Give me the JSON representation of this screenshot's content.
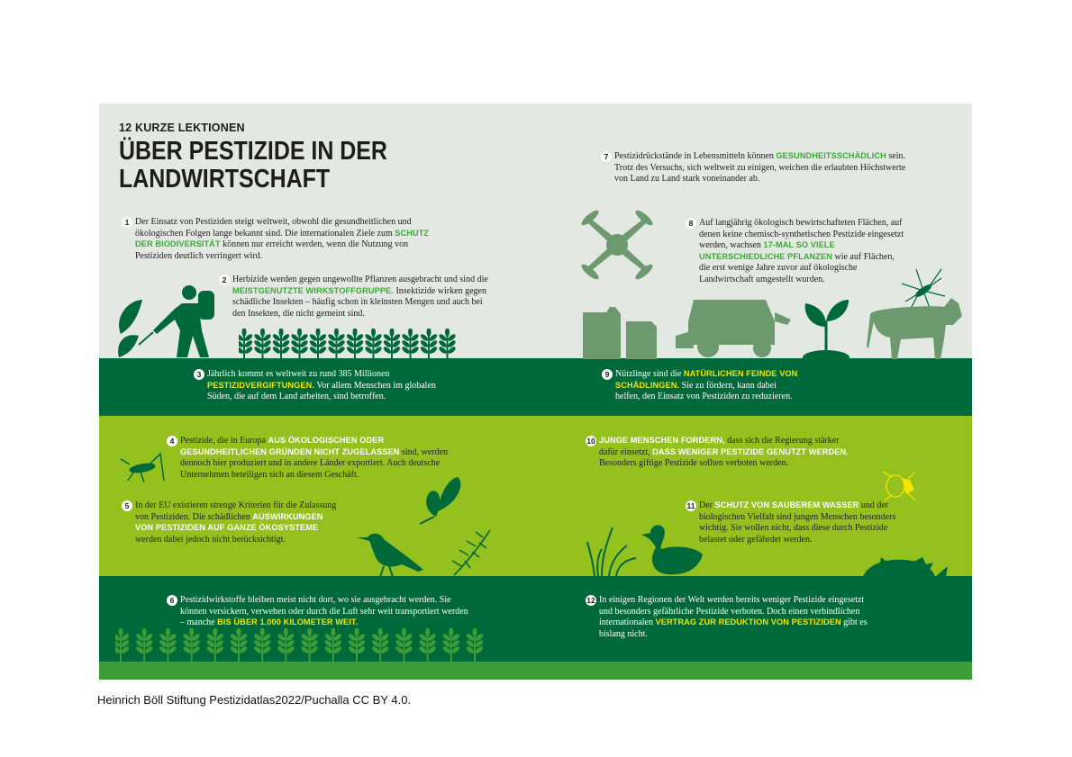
{
  "kicker": "12 KURZE LEKTIONEN",
  "headline": [
    "ÜBER PESTIZIDE IN DER",
    "LANDWIRTSCHAFT"
  ],
  "colors": {
    "light_band": "#e4e8e2",
    "dark_band": "#00693a",
    "lime_band": "#95c11f",
    "highlight_green": "#3aa935",
    "highlight_yellow": "#f4e400"
  },
  "items": [
    {
      "n": "1",
      "seg": [
        [
          "Der Einsatz von Pestiziden steigt weltweit, obwohl die gesundheitlichen und ökologischen Folgen lange bekannt sind. Die internationalen Ziele zum ",
          0
        ],
        [
          "SCHUTZ DER BIODIVERSITÄT",
          1
        ],
        [
          " können nur erreicht werden, wenn die Nutzung von Pestiziden deutlich verringert wird.",
          0
        ]
      ]
    },
    {
      "n": "2",
      "seg": [
        [
          "Herbizide werden gegen ungewollte Pflanzen ausgebracht und sind die ",
          0
        ],
        [
          "MEISTGENUTZTE WIRKSTOFFGRUPPE.",
          1
        ],
        [
          " Insektizide wirken gegen schädliche Insekten – häufig schon in kleinsten Mengen und auch bei den Insekten, die nicht gemeint sind.",
          0
        ]
      ]
    },
    {
      "n": "3",
      "seg": [
        [
          "Jährlich kommt es weltweit zu rund 385 Millionen ",
          0
        ],
        [
          "PESTIZIDVERGIFTUNGEN.",
          1
        ],
        [
          " Vor allem Menschen im globalen Süden, die auf dem Land arbeiten, sind betroffen.",
          0
        ]
      ]
    },
    {
      "n": "4",
      "seg": [
        [
          "Pestizide, die in Europa ",
          0
        ],
        [
          "AUS ÖKOLOGISCHEN ODER GESUNDHEITLICHEN GRÜNDEN NICHT ZUGELASSEN",
          1
        ],
        [
          " sind, werden dennoch hier produziert und in andere Länder exportiert. Auch deutsche Unternehmen beteiligen sich an diesem Geschäft.",
          0
        ]
      ]
    },
    {
      "n": "5",
      "seg": [
        [
          "In der EU existieren strenge Kriterien für die Zulassung von Pestiziden. Die schädlichen ",
          0
        ],
        [
          "AUSWIRKUNGEN VON PESTIZIDEN AUF GANZE ÖKOSYSTEME",
          1
        ],
        [
          " werden dabei jedoch nicht berücksichtigt.",
          0
        ]
      ]
    },
    {
      "n": "6",
      "seg": [
        [
          "Pestizidwirkstoffe bleiben meist nicht dort, wo sie ausgebracht werden. Sie können versickern, verwehen oder durch die Luft sehr weit transportiert werden – manche ",
          0
        ],
        [
          "BIS ÜBER 1.000 KILOMETER WEIT.",
          1
        ]
      ]
    },
    {
      "n": "7",
      "seg": [
        [
          "Pestizidrückstände in Lebensmitteln können ",
          0
        ],
        [
          "GESUNDHEITSSCHÄDLICH",
          1
        ],
        [
          " sein. Trotz des Versuchs, sich weltweit zu einigen, weichen die erlaubten Höchstwerte von Land zu Land stark voneinander ab.",
          0
        ]
      ]
    },
    {
      "n": "8",
      "seg": [
        [
          "Auf langjährig ökologisch bewirtschafteten Flächen, auf denen keine chemisch-synthetischen Pestizide eingesetzt werden, wachsen ",
          0
        ],
        [
          "17-MAL SO VIELE UNTERSCHIEDLICHE PFLANZEN",
          1
        ],
        [
          " wie auf Flächen, die erst wenige Jahre zuvor auf ökologische Landwirtschaft umgestellt wurden.",
          0
        ]
      ]
    },
    {
      "n": "9",
      "seg": [
        [
          "Nützlinge sind die ",
          0
        ],
        [
          "NATÜRLICHEN FEINDE VON SCHÄDLINGEN.",
          1
        ],
        [
          " Sie zu fördern, kann dabei helfen, den Einsatz von Pestiziden zu reduzieren.",
          0
        ]
      ]
    },
    {
      "n": "10",
      "seg": [
        [
          "JUNGE MENSCHEN FORDERN,",
          1
        ],
        [
          " dass sich die Regierung stärker dafür einsetzt, ",
          0
        ],
        [
          "DASS WENIGER PESTIZIDE GENUTZT WERDEN.",
          1
        ],
        [
          " Besonders giftige Pestizide sollten verboten werden.",
          0
        ]
      ]
    },
    {
      "n": "11",
      "seg": [
        [
          "Der ",
          0
        ],
        [
          "SCHUTZ VON SAUBEREM WASSER",
          1
        ],
        [
          " und der biologischen Vielfalt sind jungen Menschen besonders wichtig. Sie wollen nicht, dass diese durch Pestizide belastet oder gefährdet werden.",
          0
        ]
      ]
    },
    {
      "n": "12",
      "seg": [
        [
          "In einigen Regionen der Welt werden bereits weniger Pestizide eingesetzt und besonders gefährliche Pestizide verboten. Doch einen verbindlichen internationalen ",
          0
        ],
        [
          "VERTRAG ZUR REDUKTION VON PESTIZIDEN",
          1
        ],
        [
          " gibt es bislang nicht.",
          0
        ]
      ]
    }
  ],
  "caption": "Heinrich Böll Stiftung Pestizidatlas2022/Puchalla CC BY 4.0."
}
